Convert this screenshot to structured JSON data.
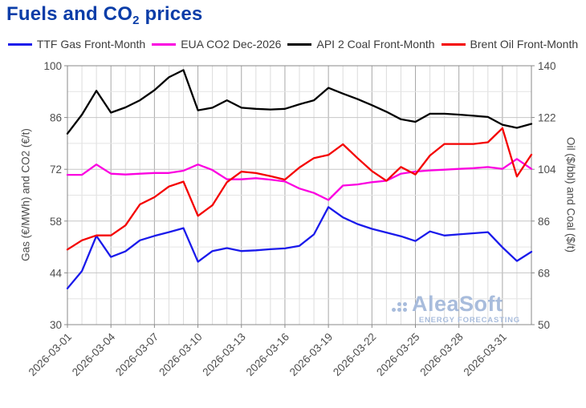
{
  "title": {
    "text_before_sub": "Fuels and CO",
    "subscript": "2",
    "text_after_sub": " prices",
    "color": "#0a3da8"
  },
  "watermark": {
    "brand": "AleaSoft",
    "tagline": "ENERGY FORECASTING",
    "color": "#a8bcdc"
  },
  "chart_data": {
    "type": "line",
    "title": "Fuels and CO2 prices",
    "legend_position": "top",
    "grid": true,
    "x": [
      "2026-03-01",
      "2026-03-02",
      "2026-03-03",
      "2026-03-04",
      "2026-03-05",
      "2026-03-06",
      "2026-03-07",
      "2026-03-08",
      "2026-03-09",
      "2026-03-10",
      "2026-03-11",
      "2026-03-12",
      "2026-03-13",
      "2026-03-14",
      "2026-03-15",
      "2026-03-16",
      "2026-03-17",
      "2026-03-18",
      "2026-03-19",
      "2026-03-20",
      "2026-03-21",
      "2026-03-22",
      "2026-03-23",
      "2026-03-24",
      "2026-03-25",
      "2026-03-26",
      "2026-03-27",
      "2026-03-28",
      "2026-03-29",
      "2026-03-30",
      "2026-03-31",
      "2026-04-01",
      "2026-04-02"
    ],
    "x_major_tick_every_days": 3,
    "left_axis": {
      "label": "Gas (€/MWh) and CO2 (€/t)",
      "min": 30,
      "max": 100,
      "ticks": [
        100,
        86,
        72,
        58,
        44,
        30
      ],
      "minor_grid_step": 7
    },
    "right_axis": {
      "label": "Oil ($/bbl) and Coal ($/t)",
      "min": 50,
      "max": 140,
      "ticks": [
        140,
        122,
        104,
        86,
        68,
        50
      ]
    },
    "series": [
      {
        "name": "TTF Gas Front-Month",
        "axis": "left",
        "unit": "€/MWh",
        "color": "#1a1aeb",
        "values": [
          39.8,
          44.5,
          54.0,
          48.3,
          49.8,
          52.8,
          54.0,
          55.0,
          56.1,
          47.0,
          49.9,
          50.7,
          49.9,
          50.1,
          50.4,
          50.6,
          51.3,
          54.4,
          61.8,
          59.0,
          57.2,
          55.9,
          54.9,
          53.9,
          52.6,
          55.2,
          54.1,
          54.4,
          54.7,
          55.0,
          50.9,
          47.2,
          49.7
        ]
      },
      {
        "name": "EUA CO2 Dec-2026",
        "axis": "left",
        "unit": "€/t",
        "color": "#fb00e0",
        "values": [
          70.5,
          70.5,
          73.3,
          70.8,
          70.6,
          70.8,
          71.0,
          71.0,
          71.6,
          73.3,
          71.8,
          69.3,
          69.3,
          69.6,
          69.2,
          68.7,
          66.8,
          65.6,
          63.7,
          67.6,
          67.9,
          68.5,
          68.9,
          70.8,
          71.4,
          71.7,
          71.9,
          72.1,
          72.3,
          72.6,
          72.1,
          74.8,
          72.1
        ]
      },
      {
        "name": "API 2 Coal Front-Month",
        "axis": "right",
        "unit": "$/t",
        "color": "#000000",
        "values": [
          116.4,
          123.0,
          131.3,
          123.7,
          125.5,
          128.0,
          131.5,
          136.0,
          138.5,
          124.5,
          125.4,
          128.0,
          125.4,
          125.0,
          124.8,
          125.0,
          126.6,
          128.0,
          132.3,
          130.3,
          128.4,
          126.3,
          124.0,
          121.4,
          120.5,
          123.3,
          123.3,
          123.0,
          122.6,
          122.2,
          119.5,
          118.4,
          119.8
        ]
      },
      {
        "name": "Brent Oil Front-Month",
        "axis": "right",
        "unit": "$/bbl",
        "color": "#f40000",
        "values": [
          76.1,
          79.3,
          81.0,
          81.0,
          84.5,
          91.8,
          94.3,
          98.0,
          99.7,
          87.8,
          91.5,
          99.5,
          103.2,
          102.7,
          101.6,
          100.4,
          104.6,
          107.9,
          109.0,
          112.7,
          107.9,
          103.4,
          100.0,
          104.8,
          102.2,
          108.8,
          112.8,
          112.8,
          112.8,
          113.4,
          118.3,
          101.5,
          109.1
        ]
      }
    ]
  }
}
